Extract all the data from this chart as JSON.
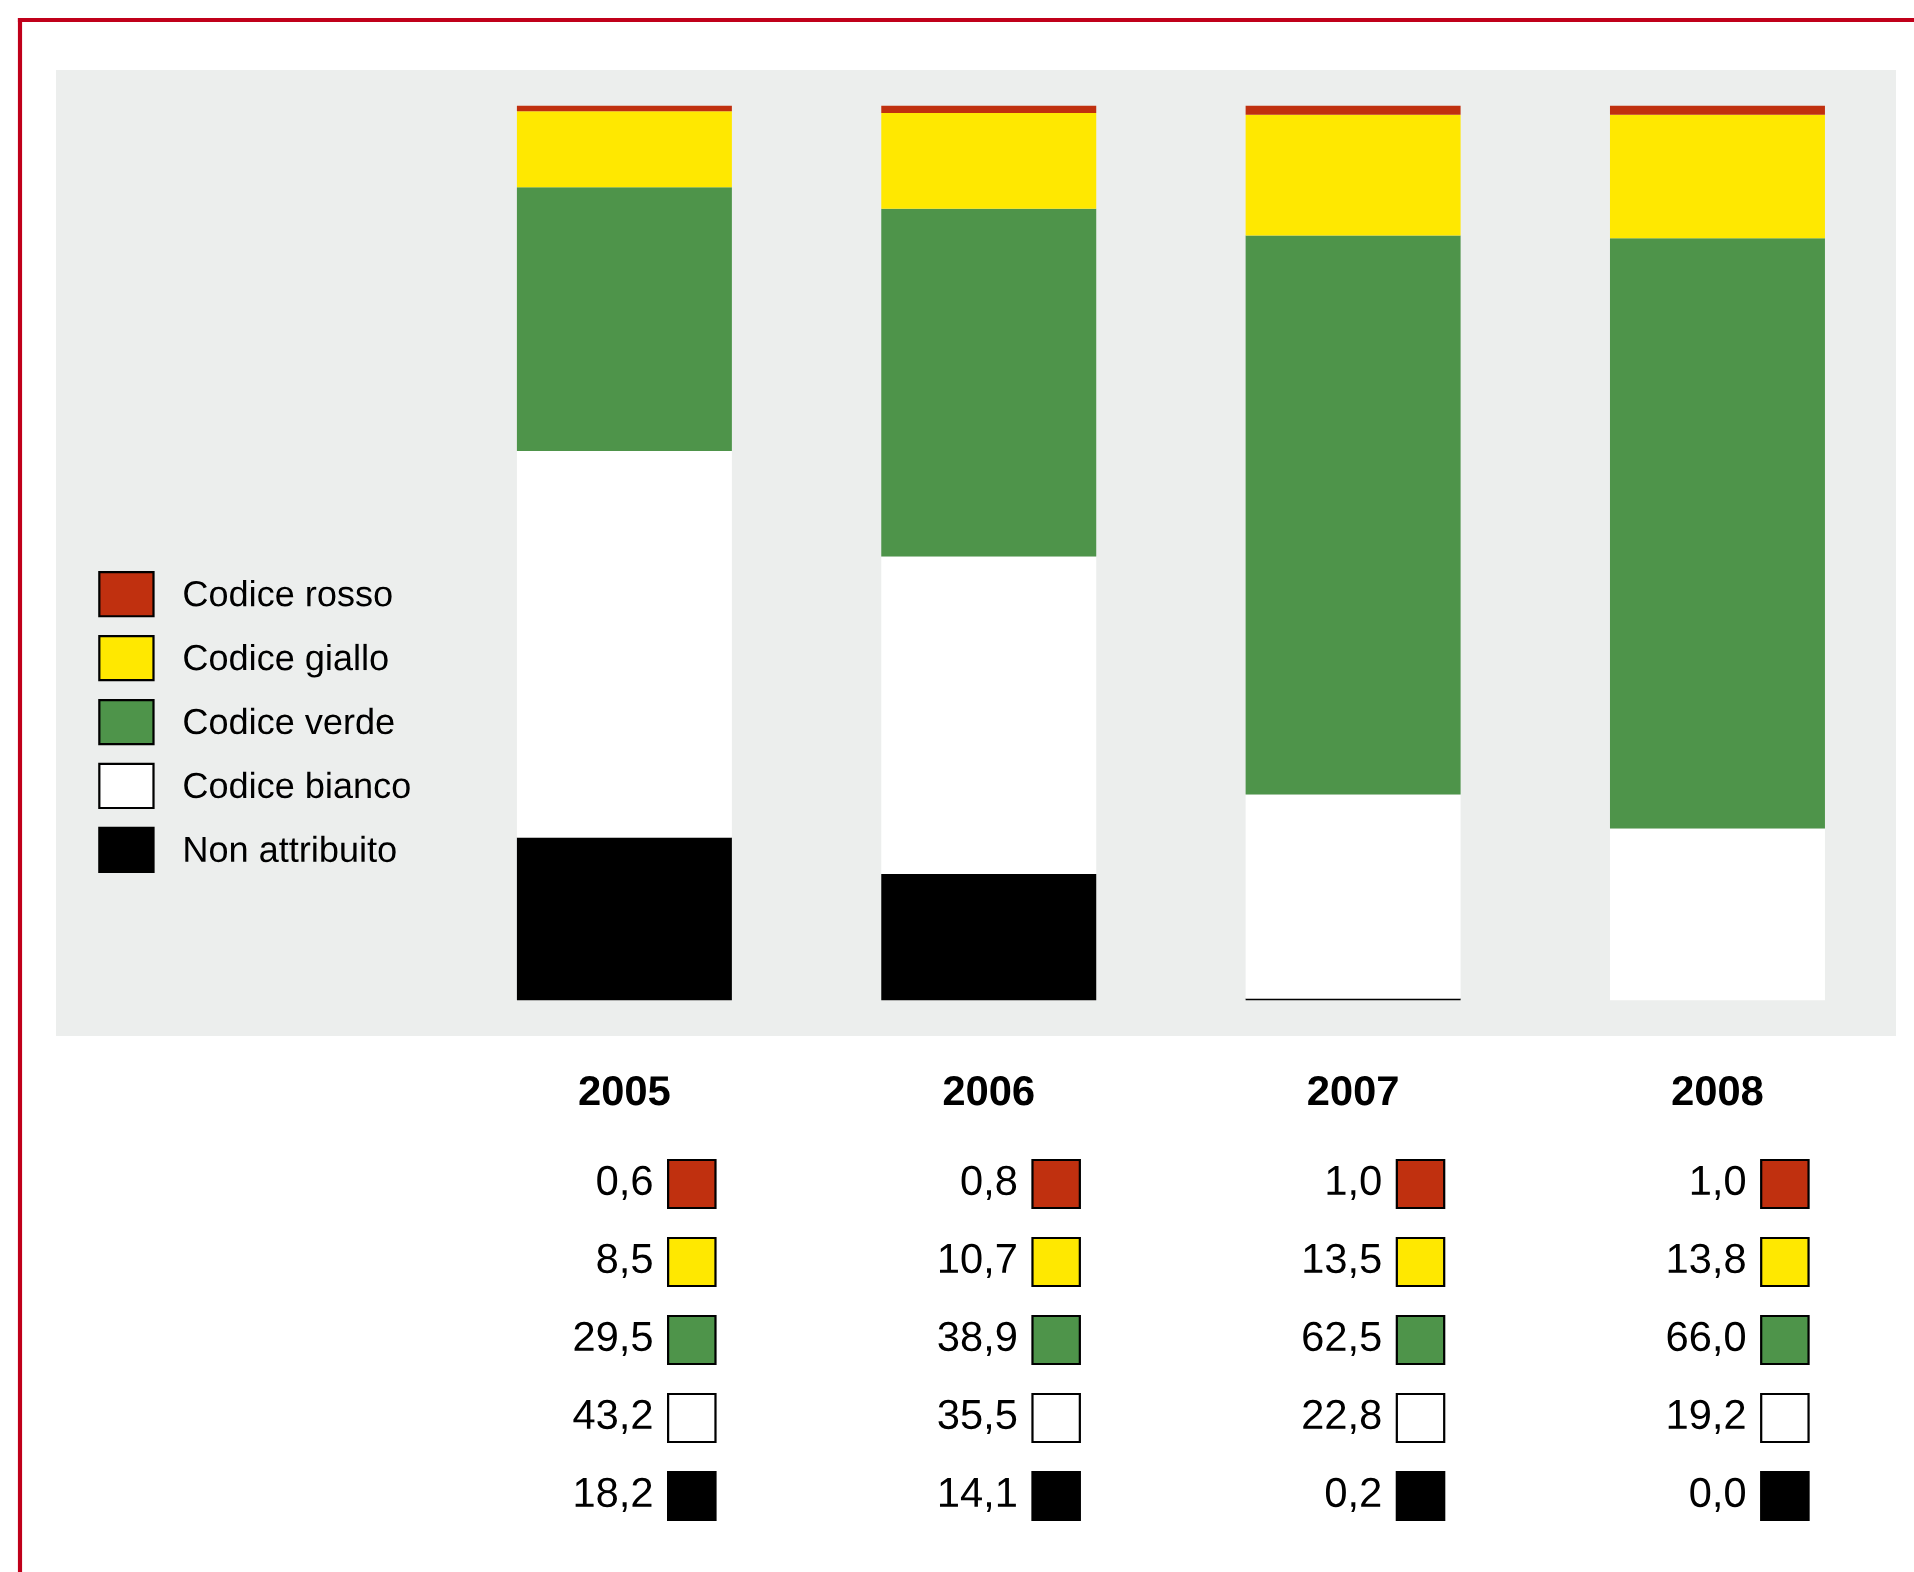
{
  "chart_data": {
    "type": "bar",
    "stacked": true,
    "categories": [
      "2005",
      "2006",
      "2007",
      "2008"
    ],
    "series": [
      {
        "name": "Non attribuito",
        "color": "#000000",
        "values": [
          18.2,
          14.1,
          0.2,
          0.0
        ],
        "value_labels": [
          "18,2",
          "14,1",
          "0,2",
          "0,0"
        ]
      },
      {
        "name": "Codice bianco",
        "color": "#ffffff",
        "values": [
          43.2,
          35.5,
          22.8,
          19.2
        ],
        "value_labels": [
          "43,2",
          "35,5",
          "22,8",
          "19,2"
        ]
      },
      {
        "name": "Codice verde",
        "color": "#4e944a",
        "values": [
          29.5,
          38.9,
          62.5,
          66.0
        ],
        "value_labels": [
          "29,5",
          "38,9",
          "62,5",
          "66,0"
        ]
      },
      {
        "name": "Codice giallo",
        "color": "#ffe800",
        "values": [
          8.5,
          10.7,
          13.5,
          13.8
        ],
        "value_labels": [
          "8,5",
          "10,7",
          "13,5",
          "13,8"
        ]
      },
      {
        "name": "Codice rosso",
        "color": "#c0300f",
        "values": [
          0.6,
          0.8,
          1.0,
          1.0
        ],
        "value_labels": [
          "0,6",
          "0,8",
          "1,0",
          "1,0"
        ]
      }
    ],
    "ylim": [
      -4,
      104
    ],
    "tick_labels": "x",
    "grid": false,
    "legend": "left"
  }
}
